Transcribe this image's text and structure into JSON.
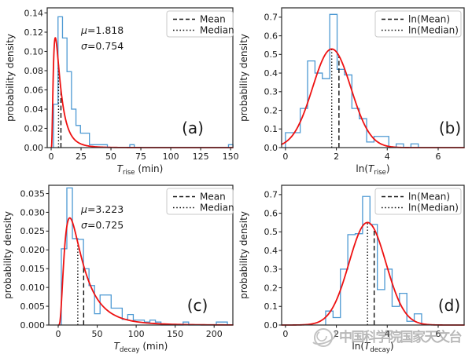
{
  "figure": {
    "description": "2x2 grid of histograms of solar/stellar flare rise and decay times with log-normal fits",
    "background": "#ffffff"
  },
  "colors": {
    "histogram": "#4d99d3",
    "fit_curve": "#ee1111",
    "stat_lines": "#111111",
    "axes": "#262626",
    "legend_border": "#c9c9c9",
    "legend_bg": "#ffffff",
    "text": "#1a1a1a",
    "watermark": "#8a8a8a"
  },
  "watermark": {
    "text": "中国科学院国家天文台",
    "logo": "naoc-logo"
  },
  "chart_data": [
    {
      "id": "a",
      "type": "histogram",
      "panel_label": "(a)",
      "xlabel": "T_rise (min)",
      "xlabel_parts": [
        {
          "t": "T",
          "s": "i"
        },
        {
          "t": "rise",
          "s": "sub"
        },
        {
          "t": " (min)",
          "s": "n"
        }
      ],
      "ylabel": "probability density",
      "xlim": [
        -3.3,
        151.9
      ],
      "ylim": [
        0,
        0.1453
      ],
      "xticks": [
        0,
        25,
        50,
        75,
        100,
        125,
        150
      ],
      "xticklabels": [
        "0",
        "25",
        "50",
        "75",
        "100",
        "125",
        "150"
      ],
      "yticks": [
        0,
        0.02,
        0.04,
        0.06,
        0.08,
        0.1,
        0.12,
        0.14
      ],
      "yticklabels": [
        "0.00",
        "0.02",
        "0.04",
        "0.06",
        "0.08",
        "0.10",
        "0.12",
        "0.14"
      ],
      "bins": {
        "start": 2.0,
        "width": 3.75,
        "heights": [
          0.045,
          0.136,
          0.114,
          0.079,
          0.04,
          0.023,
          0.015,
          0.015,
          0.003,
          0.003,
          0.003,
          0.003,
          0,
          0,
          0,
          0,
          0,
          0.003,
          0,
          0,
          0,
          0,
          0,
          0,
          0,
          0,
          0,
          0,
          0,
          0,
          0,
          0,
          0,
          0,
          0,
          0,
          0,
          0,
          0,
          0.003
        ]
      },
      "fit": {
        "type": "lognormal",
        "mu": 1.818,
        "sigma": 0.754
      },
      "annotation": [
        "μ=1.818",
        "σ=0.754"
      ],
      "vlines": {
        "mean": 8.18,
        "median": 6.16
      },
      "legend": [
        {
          "style": "dashed",
          "label": "Mean"
        },
        {
          "style": "dotted",
          "label": "Median"
        }
      ]
    },
    {
      "id": "b",
      "type": "histogram",
      "panel_label": "(b)",
      "xlabel": "ln(T_rise)",
      "xlabel_parts": [
        {
          "t": "ln(",
          "s": "n"
        },
        {
          "t": "T",
          "s": "i"
        },
        {
          "t": "rise",
          "s": "sub"
        },
        {
          "t": ")",
          "s": "n"
        }
      ],
      "ylabel": "probability density",
      "xlim": [
        -0.15,
        7.02
      ],
      "ylim": [
        0,
        0.75
      ],
      "xticks": [
        0,
        2,
        4,
        6
      ],
      "xticklabels": [
        "0",
        "2",
        "4",
        "6"
      ],
      "yticks": [
        0,
        0.1,
        0.2,
        0.3,
        0.4,
        0.5,
        0.6,
        0.7
      ],
      "yticklabels": [
        "0.0",
        "0.1",
        "0.2",
        "0.3",
        "0.4",
        "0.5",
        "0.6",
        "0.7"
      ],
      "bins": {
        "start": 0,
        "width": 0.29,
        "heights": [
          0.08,
          0.08,
          0.21,
          0.465,
          0.4,
          0.37,
          0.715,
          0.42,
          0.39,
          0.21,
          0.155,
          0.03,
          0.06,
          0.06,
          0,
          0.02,
          0,
          0.02
        ]
      },
      "fit": {
        "type": "normal",
        "mu": 1.818,
        "sigma": 0.754
      },
      "annotation": [],
      "vlines": {
        "mean": 2.102,
        "median": 1.818
      },
      "legend": [
        {
          "style": "dashed",
          "label": "ln(Mean)"
        },
        {
          "style": "dotted",
          "label": "ln(Median)"
        }
      ]
    },
    {
      "id": "c",
      "type": "histogram",
      "panel_label": "(c)",
      "xlabel": "T_decay (min)",
      "xlabel_parts": [
        {
          "t": "T",
          "s": "i"
        },
        {
          "t": "decay",
          "s": "sub"
        },
        {
          "t": " (min)",
          "s": "n"
        }
      ],
      "ylabel": "probability density",
      "xlim": [
        -12.1,
        224
      ],
      "ylim": [
        0,
        0.0372
      ],
      "xticks": [
        0,
        50,
        100,
        150,
        200
      ],
      "xticklabels": [
        "0",
        "50",
        "100",
        "150",
        "200"
      ],
      "yticks": [
        0,
        0.005,
        0.01,
        0.015,
        0.02,
        0.025,
        0.03,
        0.035
      ],
      "yticklabels": [
        "0.000",
        "0.005",
        "0.010",
        "0.015",
        "0.020",
        "0.025",
        "0.030",
        "0.035"
      ],
      "bins": {
        "start": 4,
        "width": 7.1,
        "heights": [
          0.0203,
          0.0365,
          0.023,
          0.0228,
          0.015,
          0.0105,
          0.003,
          0.008,
          0.008,
          0.0045,
          0.0045,
          0.0015,
          0.0028,
          0.0013,
          0.0013,
          0.0008,
          0.0013,
          0.0008,
          0,
          0,
          0,
          0,
          0.0008,
          0,
          0,
          0,
          0,
          0,
          0.0008,
          0.0008
        ]
      },
      "fit": {
        "type": "lognormal",
        "mu": 3.223,
        "sigma": 0.725
      },
      "annotation": [
        "μ=3.223",
        "σ=0.725"
      ],
      "vlines": {
        "mean": 32.66,
        "median": 25.11
      },
      "legend": [
        {
          "style": "dashed",
          "label": "Mean"
        },
        {
          "style": "dotted",
          "label": "Median"
        }
      ]
    },
    {
      "id": "d",
      "type": "histogram",
      "panel_label": "(d)",
      "xlabel": "ln(T_decay)",
      "xlabel_parts": [
        {
          "t": "ln(",
          "s": "n"
        },
        {
          "t": "T",
          "s": "i"
        },
        {
          "t": "decay",
          "s": "sub"
        },
        {
          "t": ")",
          "s": "n"
        }
      ],
      "ylabel": "probability density",
      "xlim": [
        -0.15,
        7.02
      ],
      "ylim": [
        0,
        0.75
      ],
      "xticks": [
        0,
        2,
        4,
        6
      ],
      "xticklabels": [
        "0",
        "2",
        "4",
        "6"
      ],
      "yticks": [
        0,
        0.1,
        0.2,
        0.3,
        0.4,
        0.5,
        0.6,
        0.7
      ],
      "yticklabels": [
        "0.0",
        "0.1",
        "0.2",
        "0.3",
        "0.4",
        "0.5",
        "0.6",
        "0.7"
      ],
      "bins": {
        "start": 1.58,
        "width": 0.29,
        "heights": [
          0.075,
          0.04,
          0.3,
          0.485,
          0.49,
          0.69,
          0.54,
          0.19,
          0.3,
          0.1,
          0.17,
          0.02,
          0.06
        ]
      },
      "fit": {
        "type": "normal",
        "mu": 3.223,
        "sigma": 0.725
      },
      "annotation": [],
      "vlines": {
        "mean": 3.486,
        "median": 3.223
      },
      "legend": [
        {
          "style": "dashed",
          "label": "ln(Mean)"
        },
        {
          "style": "dotted",
          "label": "ln(Median)"
        }
      ]
    }
  ]
}
